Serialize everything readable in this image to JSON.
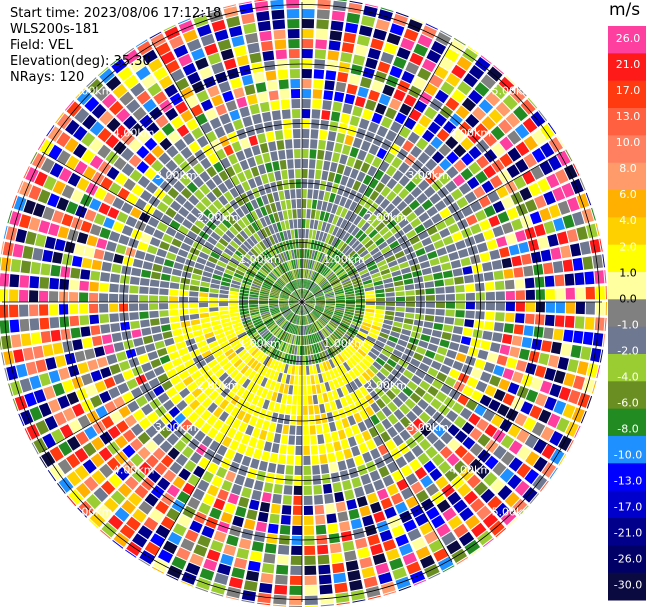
{
  "info": {
    "start_time": "Start time: 2023/08/06 17:12:18",
    "instrument": "WLS200s-181",
    "field": "Field: VEL",
    "elevation": "Elevation(deg): 35.30",
    "nrays": "NRays: 120"
  },
  "chart_data": {
    "type": "heatmap",
    "projection": "polar PPI",
    "range_rings_km": [
      1.0,
      2.0,
      3.0,
      4.0,
      5.0
    ],
    "range_labels": [
      "1.00km",
      "2.00km",
      "3.00km",
      "4.00km",
      "5.00km"
    ],
    "spokes_deg": [
      0,
      30,
      60,
      90,
      120,
      150,
      180,
      210,
      240,
      270,
      300,
      330
    ],
    "n_rays": 120,
    "colorbar": {
      "unit": "m/s",
      "ticks": [
        "26.0",
        "21.0",
        "17.0",
        "13.0",
        "10.0",
        "8.0",
        "6.0",
        "4.0",
        "2.0",
        "1.0",
        "0.0",
        "-1.0",
        "-2.0",
        "-4.0",
        "-6.0",
        "-8.0",
        "-10.0",
        "-13.0",
        "-17.0",
        "-21.0",
        "-26.0",
        "-30.0"
      ],
      "colors": [
        "#ff3fa0",
        "#ff1a1a",
        "#ff3a10",
        "#ff6040",
        "#ff8060",
        "#ff9a6a",
        "#ffb000",
        "#ffd000",
        "#ffff00",
        "#ffffa0",
        "#808080",
        "#6e7890",
        "#9acd32",
        "#6b8e23",
        "#228b22",
        "#1e90ff",
        "#0000ff",
        "#0000cd",
        "#00008b",
        "#000066",
        "#0a0a40"
      ]
    }
  }
}
